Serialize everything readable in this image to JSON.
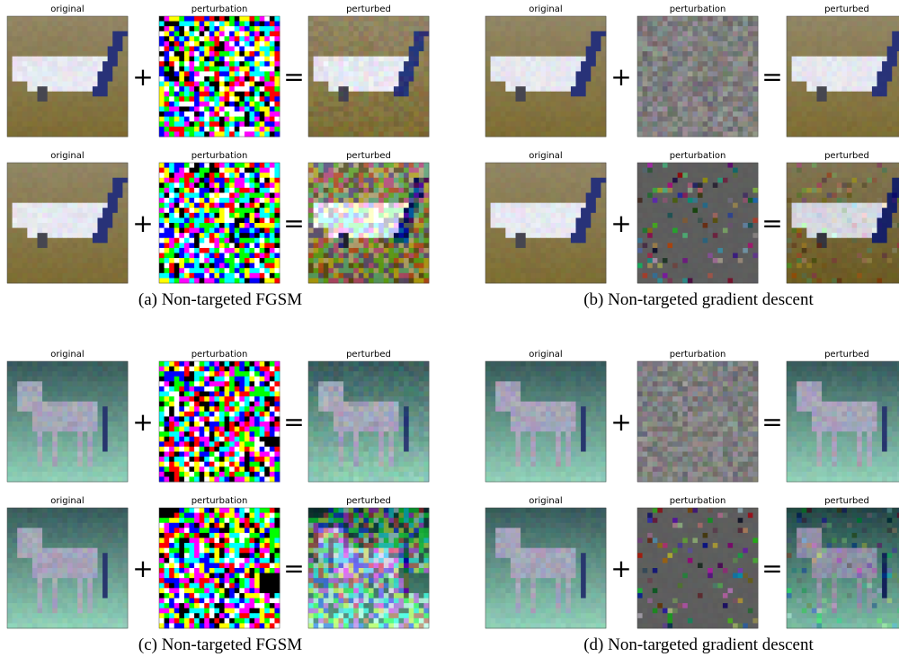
{
  "panels": [
    {
      "caption": "(a) Non-targeted FGSM",
      "rows": [
        {
          "original": "original",
          "perturbation": "perturbation",
          "perturbed": "perturbed",
          "plus": "+",
          "equals": "="
        },
        {
          "original": "original",
          "perturbation": "perturbation",
          "perturbed": "perturbed",
          "plus": "+",
          "equals": "="
        }
      ]
    },
    {
      "caption": "(b) Non-targeted gradient descent",
      "rows": [
        {
          "original": "original",
          "perturbation": "perturbation",
          "perturbed": "perturbed",
          "plus": "+",
          "equals": "="
        },
        {
          "original": "original",
          "perturbation": "perturbation",
          "perturbed": "perturbed",
          "plus": "+",
          "equals": "="
        }
      ]
    },
    {
      "caption": "(c) Non-targeted FGSM",
      "rows": [
        {
          "original": "original",
          "perturbation": "perturbation",
          "perturbed": "perturbed",
          "plus": "+",
          "equals": "="
        },
        {
          "original": "original",
          "perturbation": "perturbation",
          "perturbed": "perturbed",
          "plus": "+",
          "equals": "="
        }
      ]
    },
    {
      "caption": "(d) Non-targeted gradient descent",
      "rows": [
        {
          "original": "original",
          "perturbation": "perturbation",
          "perturbed": "perturbed",
          "plus": "+",
          "equals": "="
        },
        {
          "original": "original",
          "perturbation": "perturbation",
          "perturbed": "perturbed",
          "plus": "+",
          "equals": "="
        }
      ]
    }
  ]
}
